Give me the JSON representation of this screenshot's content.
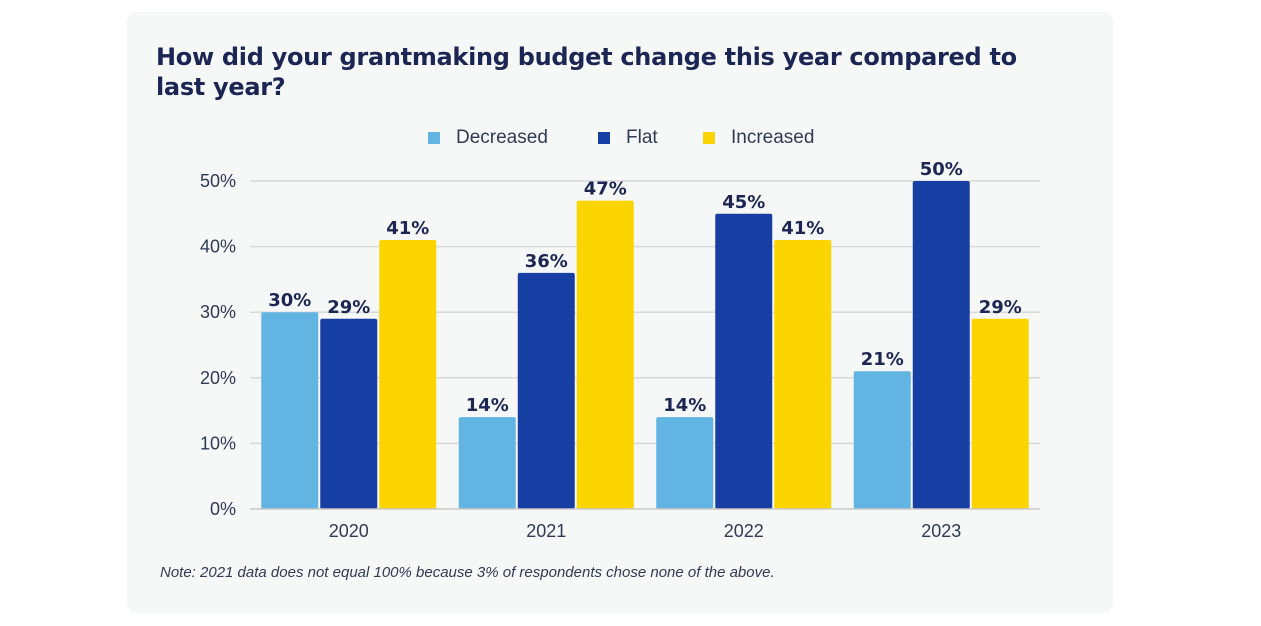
{
  "chart_data": {
    "type": "bar",
    "title": "How did your grantmaking budget change this year compared to last year?",
    "categories": [
      "2020",
      "2021",
      "2022",
      "2023"
    ],
    "series": [
      {
        "name": "Decreased",
        "color": "#62b4e3",
        "values": [
          30,
          14,
          14,
          21
        ]
      },
      {
        "name": "Flat",
        "color": "#173ea3",
        "values": [
          29,
          36,
          45,
          50
        ]
      },
      {
        "name": "Increased",
        "color": "#fcd500",
        "values": [
          41,
          47,
          41,
          29
        ]
      }
    ],
    "data_labels": [
      [
        "30%",
        "14%",
        "14%",
        "21%"
      ],
      [
        "29%",
        "36%",
        "45%",
        "50%"
      ],
      [
        "41%",
        "47%",
        "41%",
        "29%"
      ]
    ],
    "yticks": [
      0,
      10,
      20,
      30,
      40,
      50
    ],
    "ytick_labels": [
      "0%",
      "10%",
      "20%",
      "30%",
      "40%",
      "50%"
    ],
    "ylim": [
      0,
      50
    ],
    "xlabel": "",
    "ylabel": "",
    "grid": true,
    "legend_position": "top-center",
    "note": "Note: 2021 data does not equal 100% because 3% of respondents chose none of the above."
  }
}
